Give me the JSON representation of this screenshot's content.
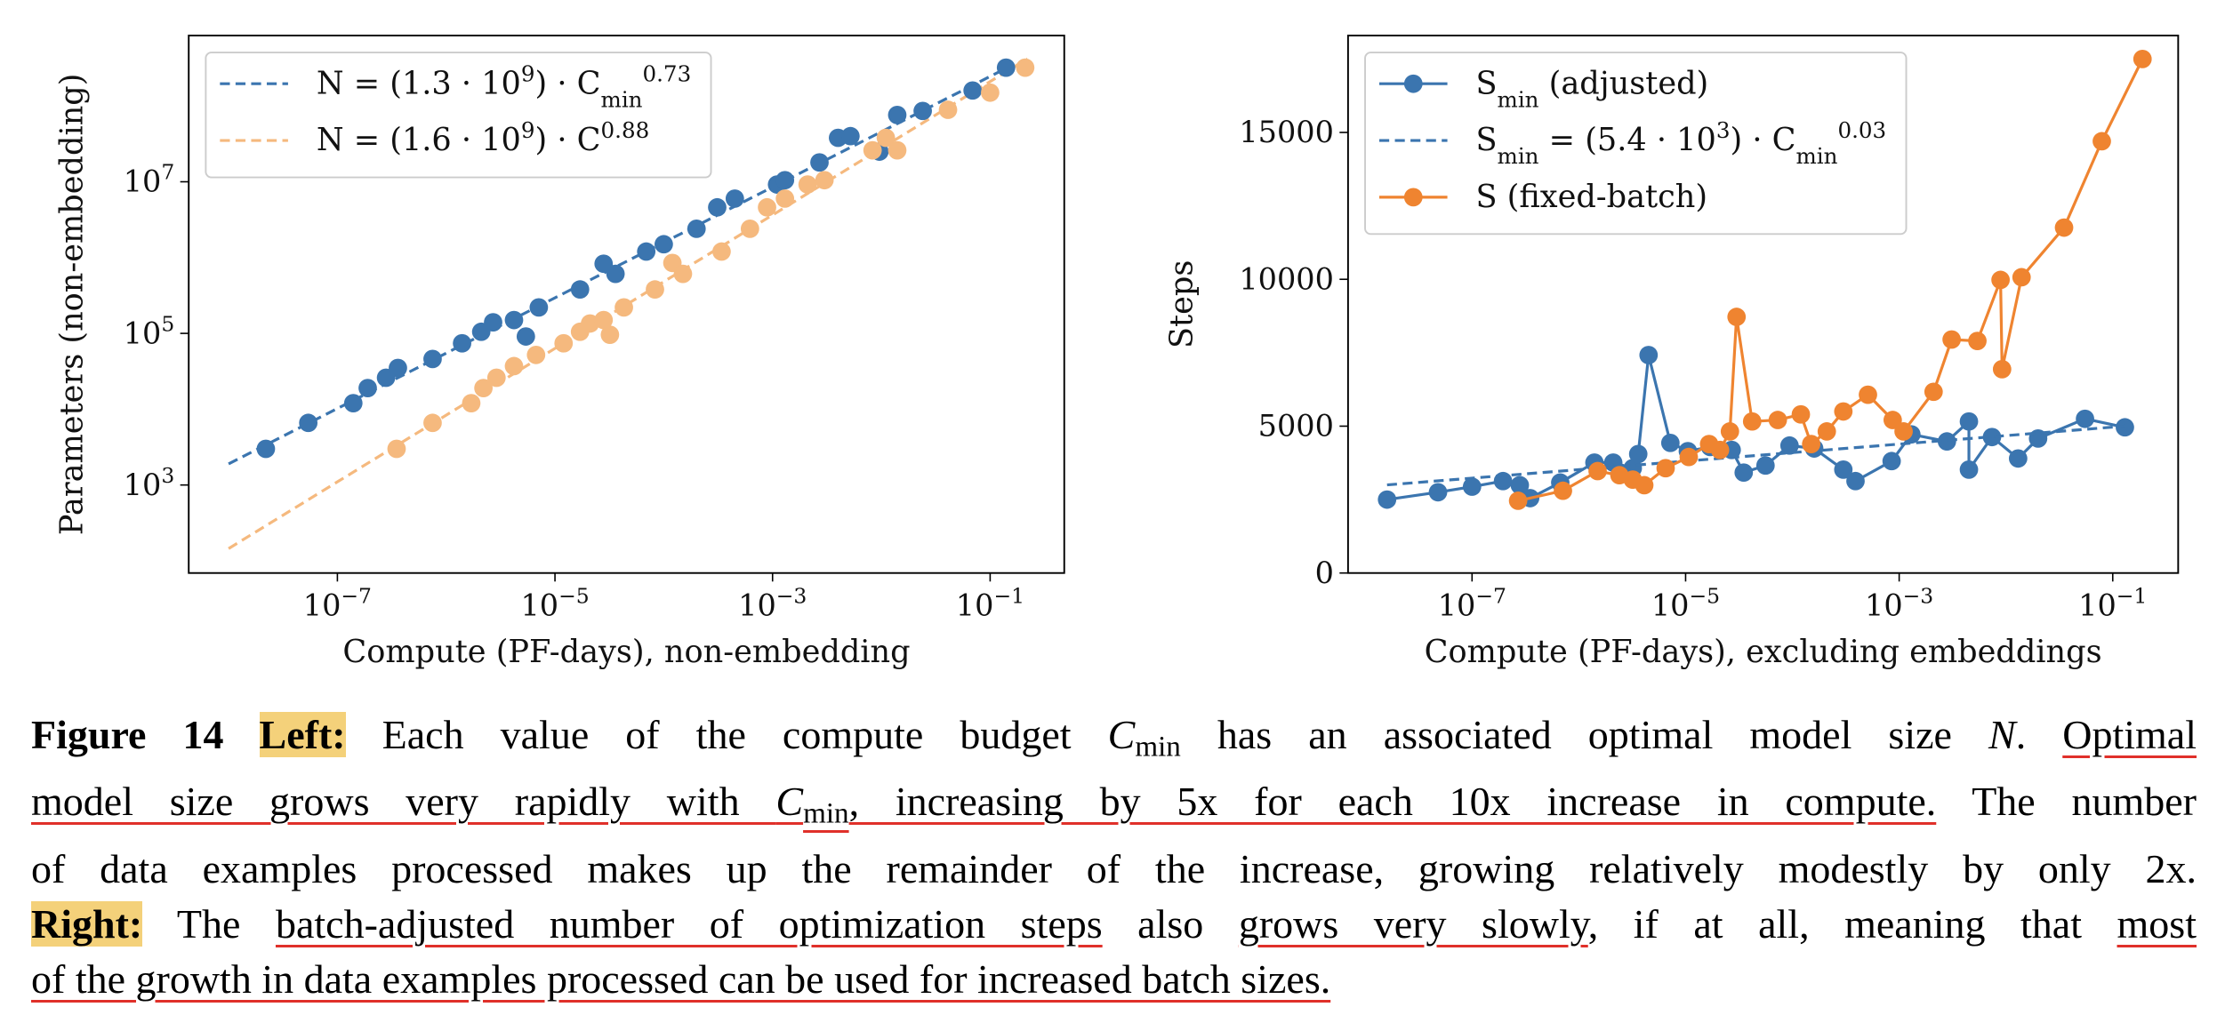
{
  "chart_data": [
    {
      "type": "scatter",
      "xlabel": "Compute (PF-days), non-embedding",
      "ylabel": "Parameters (non-embedding)",
      "xscale": "log",
      "yscale": "log",
      "xlim": [
        4.3e-09,
        0.48
      ],
      "ylim": [
        69,
        850000000.0
      ],
      "xticks": [
        {
          "value": 1e-07,
          "label": "10^{−7}"
        },
        {
          "value": 1e-05,
          "label": "10^{−5}"
        },
        {
          "value": 0.001,
          "label": "10^{−3}"
        },
        {
          "value": 0.1,
          "label": "10^{−1}"
        }
      ],
      "yticks": [
        {
          "value": 1000.0,
          "label": "10^{3}"
        },
        {
          "value": 100000.0,
          "label": "10^{5}"
        },
        {
          "value": 10000000.0,
          "label": "10^{7}"
        }
      ],
      "legend": "upper left",
      "series": [
        {
          "name": "N = (1.3 · 10^{9}) · C_{min}^{0.73}",
          "color": "#3b75af",
          "mode": "lines",
          "dash": true,
          "x": [
            1e-08,
            0.15
          ],
          "values": [
            1900,
            330000000.0
          ]
        },
        {
          "name": "N = (1.6 · 10^{9}) · C^{0.88}",
          "color": "#f5b97e",
          "mode": "lines",
          "dash": true,
          "x": [
            1e-08,
            0.22
          ],
          "values": [
            145,
            420000000.0
          ]
        },
        {
          "color": "#3b75af",
          "mode": "markers",
          "x": [
            2.2e-08,
            5.4e-08,
            1.4e-07,
            1.9e-07,
            2.8e-07,
            3.6e-07,
            7.5e-07,
            1.4e-06,
            2.1e-06,
            2.7e-06,
            4.2e-06,
            5.4e-06,
            7.1e-06,
            1.7e-05,
            2.8e-05,
            3.6e-05,
            6.9e-05,
            0.0001,
            0.0002,
            0.00031,
            0.00045,
            0.0011,
            0.0013,
            0.0027,
            0.004,
            0.0052,
            0.0096,
            0.014,
            0.024,
            0.069,
            0.14
          ],
          "values": [
            3000,
            6600,
            12000,
            19000,
            26000,
            35000,
            46000,
            74000,
            105000,
            140000,
            150000,
            91000,
            220000,
            380000,
            830000,
            610000,
            1200000.0,
            1500000.0,
            2400000.0,
            4600000.0,
            6000000.0,
            9200000.0,
            10500000.0,
            18000000.0,
            38000000.0,
            40000000.0,
            25000000.0,
            76000000.0,
            86000000.0,
            160000000.0,
            320000000.0
          ]
        },
        {
          "color": "#f5b97e",
          "mode": "markers",
          "x": [
            3.5e-07,
            7.5e-07,
            1.7e-06,
            2.2e-06,
            2.9e-06,
            4.2e-06,
            6.7e-06,
            1.2e-05,
            1.7e-05,
            2.1e-05,
            2.8e-05,
            3.2e-05,
            4.3e-05,
            8.3e-05,
            0.00012,
            0.00015,
            0.00034,
            0.00062,
            0.00089,
            0.0013,
            0.0021,
            0.003,
            0.0083,
            0.011,
            0.014,
            0.041,
            0.1,
            0.21
          ],
          "values": [
            3000,
            6600,
            12000,
            19000,
            26000,
            37000,
            52000,
            74000,
            105000,
            135000,
            150000,
            96000,
            220000,
            380000,
            850000,
            610000,
            1200000.0,
            2400000.0,
            4600000.0,
            6000000.0,
            9200000.0,
            10500000.0,
            26000000.0,
            38000000.0,
            26000000.0,
            89000000.0,
            150000000.0,
            320000000.0
          ]
        }
      ]
    },
    {
      "type": "line",
      "xlabel": "Compute (PF-days), excluding embeddings",
      "ylabel": "Steps",
      "xscale": "log",
      "yscale": "linear",
      "xlim": [
        6.9e-09,
        0.41
      ],
      "ylim": [
        0,
        18300
      ],
      "xticks": [
        {
          "value": 1e-07,
          "label": "10^{−7}"
        },
        {
          "value": 1e-05,
          "label": "10^{−5}"
        },
        {
          "value": 0.001,
          "label": "10^{−3}"
        },
        {
          "value": 0.1,
          "label": "10^{−1}"
        }
      ],
      "yticks": [
        0,
        5000,
        10000,
        15000
      ],
      "legend": "upper left",
      "series": [
        {
          "name": "S_{min} (adjusted)",
          "color": "#3b75af",
          "mode": "lines+markers",
          "x": [
            1.6e-08,
            4.8e-08,
            1e-07,
            1.95e-07,
            2.8e-07,
            3.5e-07,
            6.7e-07,
            1.4e-06,
            2.1e-06,
            3.2e-06,
            3.6e-06,
            4.5e-06,
            7.2e-06,
            1.05e-05,
            1.7e-05,
            2.7e-05,
            3.5e-05,
            5.6e-05,
            9.4e-05,
            0.00016,
            0.0003,
            0.00039,
            0.00085,
            0.0013,
            0.0028,
            0.0045,
            0.0045,
            0.0074,
            0.013,
            0.02,
            0.055,
            0.13
          ],
          "values": [
            2500,
            2750,
            2940,
            3130,
            2990,
            2550,
            3080,
            3760,
            3760,
            3570,
            4050,
            7420,
            4430,
            4150,
            4290,
            4190,
            3420,
            3660,
            4340,
            4240,
            3520,
            3130,
            3810,
            4720,
            4480,
            5160,
            3520,
            4630,
            3900,
            4580,
            5250,
            4960
          ]
        },
        {
          "name": "S_{min} = (5.4 · 10^{3}) · C_{min}^{0.03}",
          "color": "#3b75af",
          "mode": "lines",
          "dash": true,
          "x": [
            1.6e-08,
            0.13
          ],
          "values": [
            3000,
            5000
          ]
        },
        {
          "name": "S (fixed-batch)",
          "color": "#ef8430",
          "mode": "lines+markers",
          "x": [
            2.7e-07,
            7.1e-07,
            1.5e-06,
            2.4e-06,
            3.2e-06,
            4.1e-06,
            6.5e-06,
            1.07e-05,
            1.66e-05,
            2.1e-05,
            2.6e-05,
            3e-05,
            4.2e-05,
            7.3e-05,
            0.00012,
            0.00015,
            0.00021,
            0.0003,
            0.00051,
            0.00087,
            0.0011,
            0.0021,
            0.0031,
            0.0054,
            0.0089,
            0.0092,
            0.014,
            0.035,
            0.079,
            0.19
          ],
          "values": [
            2460,
            2800,
            3470,
            3330,
            3180,
            2990,
            3570,
            3950,
            4390,
            4190,
            4820,
            8720,
            5160,
            5210,
            5400,
            4390,
            4820,
            5500,
            6070,
            5210,
            4820,
            6170,
            7950,
            7900,
            9980,
            6940,
            10070,
            11760,
            14700,
            17500
          ]
        }
      ]
    }
  ],
  "caption": {
    "lines": [
      [
        "Figure 14",
        "Left:",
        " Each value of the compute budget ",
        "C",
        "min",
        " has an associated optimal model size ",
        "N",
        ". ",
        "Optimal"
      ],
      [
        "model size grows very rapidly with ",
        "C",
        "min",
        ", increasing by 5x for each 10x increase in compute.",
        " The number"
      ],
      [
        "of data examples processed makes up the remainder of the increase, growing relatively modestly by only 2x."
      ],
      [
        "Right:",
        " The ",
        "batch-adjusted number of optimization steps",
        " also ",
        "grows very slowly",
        ", if at all, meaning that ",
        "most"
      ],
      [
        "of the growth in data examples processed can be used for increased batch sizes."
      ]
    ]
  }
}
